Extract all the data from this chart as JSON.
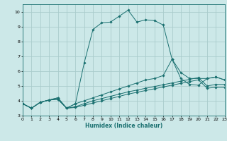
{
  "background_color": "#cce8e8",
  "grid_color": "#aacccc",
  "line_color": "#1a7070",
  "xlabel": "Humidex (Indice chaleur)",
  "xlim": [
    0,
    23
  ],
  "ylim": [
    3,
    10.5
  ],
  "xticks": [
    0,
    1,
    2,
    3,
    4,
    5,
    6,
    7,
    8,
    9,
    10,
    11,
    12,
    13,
    14,
    15,
    16,
    17,
    18,
    19,
    20,
    21,
    22,
    23
  ],
  "yticks": [
    3,
    4,
    5,
    6,
    7,
    8,
    9,
    10
  ],
  "series": [
    {
      "x": [
        0,
        1,
        2,
        3,
        4,
        5,
        6,
        7,
        8,
        9,
        10,
        11,
        12,
        13,
        14,
        15,
        16,
        17,
        18,
        19,
        20,
        21,
        22,
        23
      ],
      "y": [
        3.8,
        3.5,
        3.9,
        4.05,
        4.2,
        3.5,
        3.8,
        6.55,
        8.8,
        9.25,
        9.3,
        9.7,
        10.1,
        9.3,
        9.45,
        9.4,
        9.1,
        6.8,
        5.5,
        5.1,
        5.05,
        5.5,
        5.6,
        5.4
      ]
    },
    {
      "x": [
        0,
        1,
        2,
        3,
        4,
        5,
        6,
        7,
        8,
        9,
        10,
        11,
        12,
        13,
        14,
        15,
        16,
        17,
        18,
        19,
        20,
        21,
        22,
        23
      ],
      "y": [
        3.8,
        3.5,
        3.9,
        4.05,
        4.2,
        3.5,
        3.8,
        4.0,
        4.2,
        4.4,
        4.6,
        4.8,
        5.0,
        5.2,
        5.4,
        5.5,
        5.7,
        6.8,
        5.9,
        5.5,
        5.5,
        5.5,
        5.6,
        5.4
      ]
    },
    {
      "x": [
        0,
        1,
        2,
        3,
        4,
        5,
        6,
        7,
        8,
        9,
        10,
        11,
        12,
        13,
        14,
        15,
        16,
        17,
        18,
        19,
        20,
        21,
        22,
        23
      ],
      "y": [
        3.8,
        3.5,
        3.9,
        4.05,
        4.1,
        3.5,
        3.6,
        3.8,
        4.0,
        4.15,
        4.3,
        4.45,
        4.6,
        4.72,
        4.84,
        4.96,
        5.08,
        5.2,
        5.32,
        5.44,
        5.56,
        5.0,
        5.1,
        5.1
      ]
    },
    {
      "x": [
        0,
        1,
        2,
        3,
        4,
        5,
        6,
        7,
        8,
        9,
        10,
        11,
        12,
        13,
        14,
        15,
        16,
        17,
        18,
        19,
        20,
        21,
        22,
        23
      ],
      "y": [
        3.8,
        3.5,
        3.9,
        4.05,
        4.1,
        3.5,
        3.55,
        3.7,
        3.85,
        4.0,
        4.15,
        4.3,
        4.45,
        4.57,
        4.69,
        4.81,
        4.93,
        5.05,
        5.17,
        5.29,
        5.41,
        4.85,
        4.9,
        4.9
      ]
    }
  ]
}
